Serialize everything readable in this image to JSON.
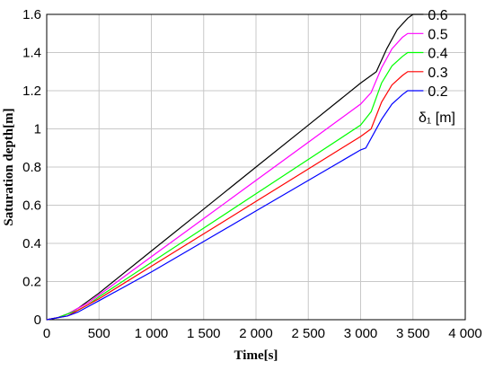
{
  "chart_data": {
    "type": "line",
    "xlabel": "Time[s]",
    "ylabel": "Saturation depth[m]",
    "xlim": [
      0,
      4000
    ],
    "ylim": [
      0,
      1.6
    ],
    "xticks": [
      0,
      500,
      1000,
      1500,
      2000,
      2500,
      3000,
      3500,
      4000
    ],
    "xtick_labels": [
      "0",
      "500",
      "1 000",
      "1 500",
      "2 000",
      "2 500",
      "3 000",
      "3 500",
      "4 000"
    ],
    "yticks": [
      0,
      0.2,
      0.4,
      0.6,
      0.8,
      1.0,
      1.2,
      1.4,
      1.6
    ],
    "ytick_labels": [
      "0",
      "0.2",
      "0.4",
      "0.6",
      "0.8",
      "1",
      "1.2",
      "1.4",
      "1.6"
    ],
    "grid": true,
    "legend_title": "δ₁ [m]",
    "legend_placement": "right",
    "series": [
      {
        "name": "0.6",
        "color": "#000000",
        "points": [
          [
            0,
            0
          ],
          [
            100,
            0.01
          ],
          [
            200,
            0.03
          ],
          [
            300,
            0.06
          ],
          [
            400,
            0.1
          ],
          [
            500,
            0.14
          ],
          [
            1000,
            0.36
          ],
          [
            1500,
            0.58
          ],
          [
            2000,
            0.8
          ],
          [
            2500,
            1.02
          ],
          [
            3000,
            1.24
          ],
          [
            3150,
            1.3
          ],
          [
            3250,
            1.42
          ],
          [
            3350,
            1.52
          ],
          [
            3450,
            1.58
          ],
          [
            3500,
            1.6
          ],
          [
            3600,
            1.6
          ]
        ]
      },
      {
        "name": "0.5",
        "color": "#ff00ff",
        "points": [
          [
            0,
            0
          ],
          [
            100,
            0.01
          ],
          [
            200,
            0.03
          ],
          [
            300,
            0.06
          ],
          [
            400,
            0.09
          ],
          [
            500,
            0.13
          ],
          [
            1000,
            0.33
          ],
          [
            1500,
            0.53
          ],
          [
            2000,
            0.73
          ],
          [
            2500,
            0.93
          ],
          [
            3000,
            1.13
          ],
          [
            3100,
            1.19
          ],
          [
            3200,
            1.32
          ],
          [
            3300,
            1.42
          ],
          [
            3400,
            1.48
          ],
          [
            3450,
            1.5
          ],
          [
            3600,
            1.5
          ]
        ]
      },
      {
        "name": "0.4",
        "color": "#00ff00",
        "points": [
          [
            0,
            0
          ],
          [
            100,
            0.01
          ],
          [
            200,
            0.03
          ],
          [
            300,
            0.05
          ],
          [
            400,
            0.08
          ],
          [
            500,
            0.12
          ],
          [
            1000,
            0.3
          ],
          [
            1500,
            0.48
          ],
          [
            2000,
            0.66
          ],
          [
            2500,
            0.84
          ],
          [
            3000,
            1.02
          ],
          [
            3100,
            1.09
          ],
          [
            3200,
            1.24
          ],
          [
            3300,
            1.33
          ],
          [
            3400,
            1.38
          ],
          [
            3450,
            1.4
          ],
          [
            3600,
            1.4
          ]
        ]
      },
      {
        "name": "0.3",
        "color": "#ff0000",
        "points": [
          [
            0,
            0
          ],
          [
            100,
            0.01
          ],
          [
            200,
            0.02
          ],
          [
            300,
            0.05
          ],
          [
            400,
            0.08
          ],
          [
            500,
            0.11
          ],
          [
            1000,
            0.28
          ],
          [
            1500,
            0.45
          ],
          [
            2000,
            0.62
          ],
          [
            2500,
            0.79
          ],
          [
            3000,
            0.96
          ],
          [
            3100,
            1.0
          ],
          [
            3200,
            1.14
          ],
          [
            3300,
            1.23
          ],
          [
            3400,
            1.28
          ],
          [
            3450,
            1.3
          ],
          [
            3600,
            1.3
          ]
        ]
      },
      {
        "name": "0.2",
        "color": "#0000ff",
        "points": [
          [
            0,
            0
          ],
          [
            100,
            0.01
          ],
          [
            200,
            0.02
          ],
          [
            300,
            0.04
          ],
          [
            400,
            0.07
          ],
          [
            500,
            0.1
          ],
          [
            1000,
            0.25
          ],
          [
            1500,
            0.41
          ],
          [
            2000,
            0.57
          ],
          [
            2500,
            0.73
          ],
          [
            3000,
            0.89
          ],
          [
            3050,
            0.9
          ],
          [
            3200,
            1.05
          ],
          [
            3300,
            1.13
          ],
          [
            3400,
            1.18
          ],
          [
            3450,
            1.2
          ],
          [
            3600,
            1.2
          ]
        ]
      }
    ]
  }
}
